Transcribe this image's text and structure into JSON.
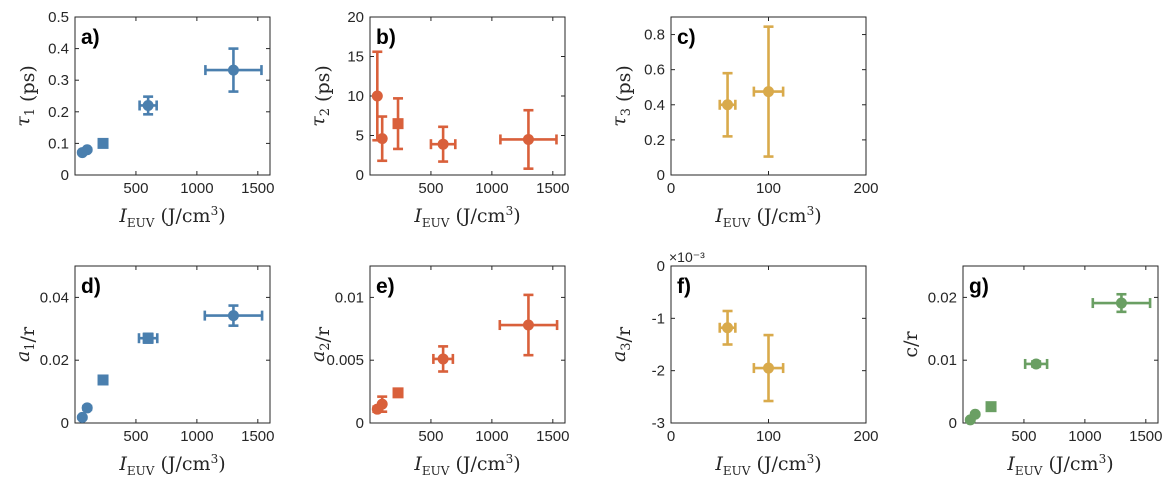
{
  "colors": {
    "blue": "#4a7fae",
    "orange": "#d9603b",
    "yellow": "#d9aa4b",
    "green": "#6a9f63"
  },
  "chart_data": [
    {
      "type": "scatter",
      "panel": "a)",
      "color_key": "blue",
      "ylabel": "τ₁ (ps)",
      "xlabel": "I_EUV (J/cm³)",
      "xlim": [
        0,
        1600
      ],
      "ylim": [
        0,
        0.5
      ],
      "xticks": [
        {
          "v": 500,
          "t": "500"
        },
        {
          "v": 1000,
          "t": "1000"
        },
        {
          "v": 1500,
          "t": "1500"
        }
      ],
      "yticks": [
        {
          "v": 0,
          "t": "0"
        },
        {
          "v": 0.1,
          "t": "0.1"
        },
        {
          "v": 0.2,
          "t": "0.2"
        },
        {
          "v": 0.3,
          "t": "0.3"
        },
        {
          "v": 0.4,
          "t": "0.4"
        },
        {
          "v": 0.5,
          "t": "0.5"
        }
      ],
      "points": [
        {
          "x": 60,
          "y": 0.071,
          "xerr": 0,
          "yerr": 0.004
        },
        {
          "x": 100,
          "y": 0.08,
          "xerr": 0,
          "yerr": 0.004
        },
        {
          "x": 230,
          "y": 0.1,
          "xerr": 20,
          "yerr": 0.008
        },
        {
          "x": 600,
          "y": 0.22,
          "xerr": 70,
          "yerr": 0.028
        },
        {
          "x": 1300,
          "y": 0.332,
          "xerr": 230,
          "yerr": 0.068
        }
      ]
    },
    {
      "type": "scatter",
      "panel": "b)",
      "color_key": "orange",
      "ylabel": "τ₂ (ps)",
      "xlabel": "I_EUV (J/cm³)",
      "xlim": [
        0,
        1600
      ],
      "ylim": [
        0,
        20
      ],
      "xticks": [
        {
          "v": 500,
          "t": "500"
        },
        {
          "v": 1000,
          "t": "1000"
        },
        {
          "v": 1500,
          "t": "1500"
        }
      ],
      "yticks": [
        {
          "v": 0,
          "t": "0"
        },
        {
          "v": 5,
          "t": "5"
        },
        {
          "v": 10,
          "t": "10"
        },
        {
          "v": 15,
          "t": "15"
        },
        {
          "v": 20,
          "t": "20"
        }
      ],
      "points": [
        {
          "x": 60,
          "y": 10.0,
          "xerr": 0,
          "yerr": 5.6
        },
        {
          "x": 100,
          "y": 4.6,
          "xerr": 0,
          "yerr": 2.8
        },
        {
          "x": 230,
          "y": 6.5,
          "xerr": 20,
          "yerr": 3.2
        },
        {
          "x": 600,
          "y": 3.9,
          "xerr": 100,
          "yerr": 2.2
        },
        {
          "x": 1300,
          "y": 4.5,
          "xerr": 230,
          "yerr": 3.7
        }
      ]
    },
    {
      "type": "scatter",
      "panel": "c)",
      "color_key": "yellow",
      "ylabel": "τ₃ (ps)",
      "xlabel": "I_EUV (J/cm³)",
      "xlim": [
        0,
        200
      ],
      "ylim": [
        0,
        0.9
      ],
      "xticks": [
        {
          "v": 0,
          "t": "0"
        },
        {
          "v": 100,
          "t": "100"
        },
        {
          "v": 200,
          "t": "200"
        }
      ],
      "yticks": [
        {
          "v": 0,
          "t": "0"
        },
        {
          "v": 0.2,
          "t": "0.2"
        },
        {
          "v": 0.4,
          "t": "0.4"
        },
        {
          "v": 0.6,
          "t": "0.6"
        },
        {
          "v": 0.8,
          "t": "0.8"
        }
      ],
      "points": [
        {
          "x": 58,
          "y": 0.4,
          "xerr": 8,
          "yerr": 0.18
        },
        {
          "x": 100,
          "y": 0.475,
          "xerr": 15,
          "yerr": 0.37
        }
      ]
    },
    {
      "type": "scatter",
      "panel": "d)",
      "color_key": "blue",
      "ylabel": "a₁/r",
      "xlabel": "I_EUV (J/cm³)",
      "xlim": [
        0,
        1600
      ],
      "ylim": [
        0,
        0.05
      ],
      "xticks": [
        {
          "v": 500,
          "t": "500"
        },
        {
          "v": 1000,
          "t": "1000"
        },
        {
          "v": 1500,
          "t": "1500"
        }
      ],
      "yticks": [
        {
          "v": 0,
          "t": "0"
        },
        {
          "v": 0.02,
          "t": "0.02"
        },
        {
          "v": 0.04,
          "t": "0.04"
        }
      ],
      "points": [
        {
          "x": 60,
          "y": 0.0018,
          "xerr": 0,
          "yerr": 0.0004
        },
        {
          "x": 100,
          "y": 0.0048,
          "xerr": 0,
          "yerr": 0.0006
        },
        {
          "x": 230,
          "y": 0.0137,
          "xerr": 20,
          "yerr": 0.0006
        },
        {
          "x": 600,
          "y": 0.027,
          "xerr": 75,
          "yerr": 0.0014
        },
        {
          "x": 1300,
          "y": 0.0342,
          "xerr": 235,
          "yerr": 0.0032
        }
      ]
    },
    {
      "type": "scatter",
      "panel": "e)",
      "color_key": "orange",
      "ylabel": "a₂/r",
      "xlabel": "I_EUV (J/cm³)",
      "xlim": [
        0,
        1600
      ],
      "ylim": [
        0,
        0.0125
      ],
      "xticks": [
        {
          "v": 500,
          "t": "500"
        },
        {
          "v": 1000,
          "t": "1000"
        },
        {
          "v": 1500,
          "t": "1500"
        }
      ],
      "yticks": [
        {
          "v": 0,
          "t": "0"
        },
        {
          "v": 0.005,
          "t": "0.005"
        },
        {
          "v": 0.01,
          "t": "0.01"
        }
      ],
      "points": [
        {
          "x": 60,
          "y": 0.0011,
          "xerr": 0,
          "yerr": 0.0002
        },
        {
          "x": 100,
          "y": 0.0015,
          "xerr": 0,
          "yerr": 0.0006
        },
        {
          "x": 230,
          "y": 0.0024,
          "xerr": 20,
          "yerr": 0.0002
        },
        {
          "x": 600,
          "y": 0.0051,
          "xerr": 80,
          "yerr": 0.001
        },
        {
          "x": 1300,
          "y": 0.0078,
          "xerr": 235,
          "yerr": 0.0024
        }
      ]
    },
    {
      "type": "scatter",
      "panel": "f)",
      "color_key": "yellow",
      "ylabel": "a₃/r",
      "xlabel": "I_EUV (J/cm³)",
      "exponent": "×10⁻³",
      "xlim": [
        0,
        200
      ],
      "ylim": [
        -3,
        0
      ],
      "xticks": [
        {
          "v": 0,
          "t": "0"
        },
        {
          "v": 100,
          "t": "100"
        },
        {
          "v": 200,
          "t": "200"
        }
      ],
      "yticks": [
        {
          "v": -3,
          "t": "-3"
        },
        {
          "v": -2,
          "t": "-2"
        },
        {
          "v": -1,
          "t": "-1"
        },
        {
          "v": 0,
          "t": "0"
        }
      ],
      "points": [
        {
          "x": 58,
          "y": -1.18,
          "xerr": 8,
          "yerr": 0.32
        },
        {
          "x": 100,
          "y": -1.95,
          "xerr": 15,
          "yerr": 0.63
        }
      ]
    },
    {
      "type": "scatter",
      "panel": "g)",
      "color_key": "green",
      "ylabel": "c/r",
      "xlabel": "I_EUV (J/cm³)",
      "xlim": [
        0,
        1600
      ],
      "ylim": [
        0,
        0.025
      ],
      "xticks": [
        {
          "v": 500,
          "t": "500"
        },
        {
          "v": 1000,
          "t": "1000"
        },
        {
          "v": 1500,
          "t": "1500"
        }
      ],
      "yticks": [
        {
          "v": 0,
          "t": "0"
        },
        {
          "v": 0.01,
          "t": "0.01"
        },
        {
          "v": 0.02,
          "t": "0.02"
        }
      ],
      "points": [
        {
          "x": 60,
          "y": 0.0005,
          "xerr": 0,
          "yerr": 0.0002
        },
        {
          "x": 100,
          "y": 0.0014,
          "xerr": 0,
          "yerr": 0.0002
        },
        {
          "x": 230,
          "y": 0.0026,
          "xerr": 20,
          "yerr": 0.0005
        },
        {
          "x": 600,
          "y": 0.0094,
          "xerr": 90,
          "yerr": 0.0004
        },
        {
          "x": 1300,
          "y": 0.0191,
          "xerr": 235,
          "yerr": 0.0014
        }
      ]
    }
  ]
}
